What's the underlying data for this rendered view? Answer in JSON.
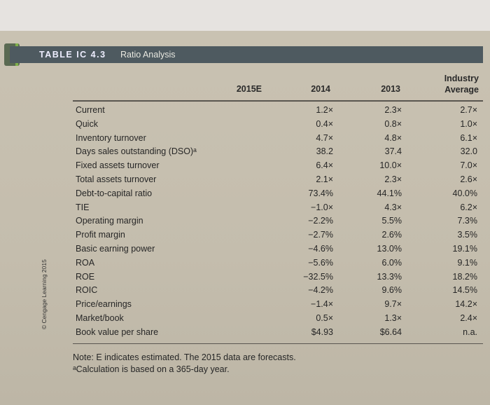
{
  "table": {
    "number": "TABLE IC 4.3",
    "title": "Ratio Analysis",
    "columns": [
      "2015E",
      "2014",
      "2013",
      "Industry Average"
    ],
    "rows": [
      {
        "label": "Current",
        "v2015": "",
        "v2014": "1.2×",
        "v2013": "2.3×",
        "industry": "2.7×"
      },
      {
        "label": "Quick",
        "v2015": "",
        "v2014": "0.4×",
        "v2013": "0.8×",
        "industry": "1.0×"
      },
      {
        "label": "Inventory turnover",
        "v2015": "",
        "v2014": "4.7×",
        "v2013": "4.8×",
        "industry": "6.1×"
      },
      {
        "label": "Days sales outstanding (DSO)ᵃ",
        "v2015": "",
        "v2014": "38.2",
        "v2013": "37.4",
        "industry": "32.0"
      },
      {
        "label": "Fixed assets turnover",
        "v2015": "",
        "v2014": "6.4×",
        "v2013": "10.0×",
        "industry": "7.0×"
      },
      {
        "label": "Total assets turnover",
        "v2015": "",
        "v2014": "2.1×",
        "v2013": "2.3×",
        "industry": "2.6×"
      },
      {
        "label": "Debt-to-capital ratio",
        "v2015": "",
        "v2014": "73.4%",
        "v2013": "44.1%",
        "industry": "40.0%"
      },
      {
        "label": "TIE",
        "v2015": "",
        "v2014": "−1.0×",
        "v2013": "4.3×",
        "industry": "6.2×"
      },
      {
        "label": "Operating margin",
        "v2015": "",
        "v2014": "−2.2%",
        "v2013": "5.5%",
        "industry": "7.3%"
      },
      {
        "label": "Profit margin",
        "v2015": "",
        "v2014": "−2.7%",
        "v2013": "2.6%",
        "industry": "3.5%"
      },
      {
        "label": "Basic earning power",
        "v2015": "",
        "v2014": "−4.6%",
        "v2013": "13.0%",
        "industry": "19.1%"
      },
      {
        "label": "ROA",
        "v2015": "",
        "v2014": "−5.6%",
        "v2013": "6.0%",
        "industry": "9.1%"
      },
      {
        "label": "ROE",
        "v2015": "",
        "v2014": "−32.5%",
        "v2013": "13.3%",
        "industry": "18.2%"
      },
      {
        "label": "ROIC",
        "v2015": "",
        "v2014": "−4.2%",
        "v2013": "9.6%",
        "industry": "14.5%"
      },
      {
        "label": "Price/earnings",
        "v2015": "",
        "v2014": "−1.4×",
        "v2013": "9.7×",
        "industry": "14.2×"
      },
      {
        "label": "Market/book",
        "v2015": "",
        "v2014": "0.5×",
        "v2013": "1.3×",
        "industry": "2.4×"
      },
      {
        "label": "Book value per share",
        "v2015": "",
        "v2014": "$4.93",
        "v2013": "$6.64",
        "industry": "n.a."
      }
    ],
    "note": "Note: E indicates estimated. The 2015 data are forecasts.",
    "footnote": "ᵃCalculation is based on a 365-day year.",
    "watermark": "© Cengage Learning 2015"
  },
  "colors": {
    "header_bar": "#4e5a60",
    "accent": "#7fb04a",
    "page": "#c9c2b2"
  }
}
